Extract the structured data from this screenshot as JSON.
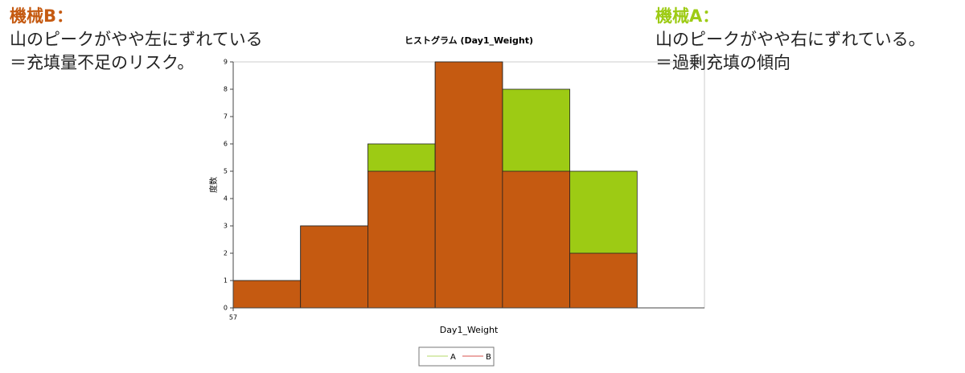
{
  "chart_data": {
    "type": "histogram",
    "title": "ヒストグラム  (Day1_Weight)",
    "xlabel": "Day1_Weight",
    "ylabel": "度数",
    "bins": [
      57,
      58,
      59,
      60,
      61,
      62,
      63
    ],
    "series": [
      {
        "name": "A",
        "color": "#9dcb14",
        "legend_color": "#b5d96a",
        "values": [
          1,
          3,
          6,
          9,
          8,
          5
        ]
      },
      {
        "name": "B",
        "color": "#c55a11",
        "legend_color": "#d9534f",
        "values": [
          1,
          3,
          5,
          9,
          5,
          2
        ]
      }
    ],
    "xlim": [
      57,
      64
    ],
    "xticks": [
      57
    ],
    "ylim": [
      0,
      9
    ],
    "yticks": [
      0,
      1,
      2,
      3,
      4,
      5,
      6,
      7,
      8,
      9
    ]
  },
  "annotations": [
    {
      "heading": "機械B：",
      "color": "#c55a11",
      "lines": [
        "山のピークがやや左にずれている",
        "＝充填量不足のリスク。"
      ]
    },
    {
      "heading": "機械A：",
      "color": "#9dcb14",
      "lines": [
        "山のピークがやや右にずれている。",
        "＝過剰充填の傾向"
      ]
    }
  ]
}
